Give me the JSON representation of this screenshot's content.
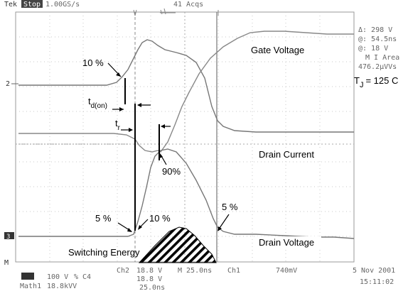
{
  "header": {
    "brand": "Tek",
    "mode": "Stop",
    "sample_rate": "1.00GS/s",
    "acquisitions": "41 Acqs"
  },
  "readouts": {
    "delta": "Δ: 298 V",
    "at": "@: 54.5ns",
    "ch_at": "@: 18 V",
    "math_label": "M I Area",
    "math_value": "476.2μVVs"
  },
  "temperature": {
    "label": "T",
    "subscript": "J",
    "value": "= 125 C"
  },
  "labels": {
    "gate_voltage": "Gate Voltage",
    "drain_current": "Drain Current",
    "drain_voltage": "Drain Voltage",
    "switching_energy": "Switching Energy",
    "pct10_top": "10 %",
    "td_on_t": "t",
    "td_on_sub": "d(on)",
    "tr_t": "t",
    "tr_sub": "r",
    "pct90": "90%",
    "pct5_left": "5 %",
    "pct10_bottom": "10 %",
    "pct5_right": "5 %"
  },
  "markers": {
    "ch2": "2",
    "ch3": "3",
    "math": "M"
  },
  "footer": {
    "ch3_scale": "100 V",
    "ch4_scale": "% C4",
    "math1": "Math1",
    "math1_scale": "18.8kVV",
    "ch2": "Ch2",
    "ch2_scale": "18.8 V",
    "c4_scale": "18.8 V",
    "timebase": "M 25.0ns",
    "ch1": "Ch1",
    "trigger_level": "740mV",
    "time_scale": "25.0ns",
    "date": "5 Nov 2001",
    "time": "15:11:02"
  }
}
